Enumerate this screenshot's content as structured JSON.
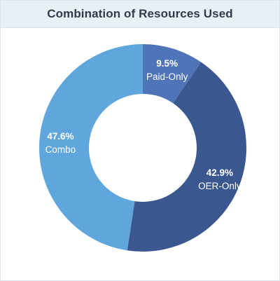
{
  "title": "Combination of Resources Used",
  "chart_data": {
    "type": "pie",
    "title": "Combination of Resources Used",
    "donut": true,
    "series": [
      {
        "name": "Paid-Only",
        "value": 9.5,
        "label": "9.5%",
        "color": "#5074b8"
      },
      {
        "name": "OER-Only",
        "value": 42.9,
        "label": "42.9%",
        "color": "#3b578f"
      },
      {
        "name": "Combo",
        "value": 47.6,
        "label": "47.6%",
        "color": "#5ea6dc"
      }
    ]
  }
}
